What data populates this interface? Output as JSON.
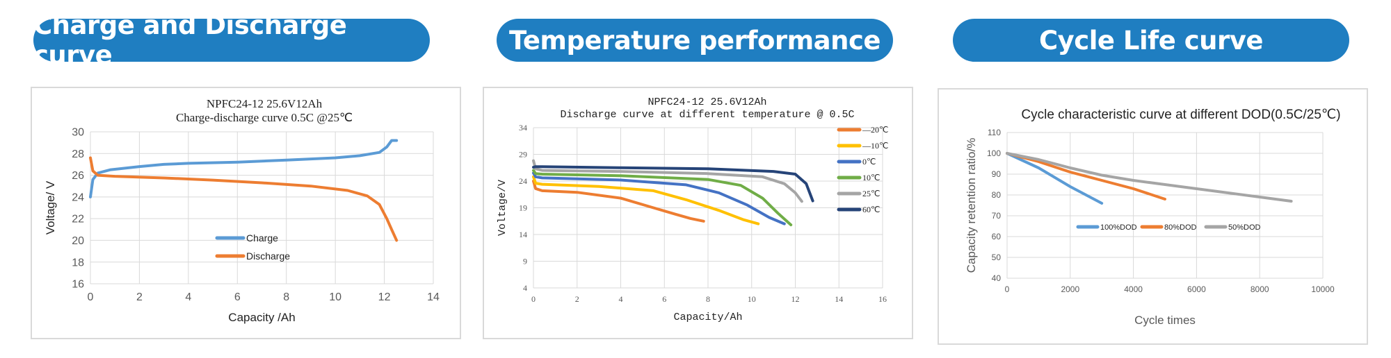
{
  "banners": [
    {
      "title": "Charge and Discharge curve"
    },
    {
      "title": "Temperature performance"
    },
    {
      "title": "Cycle Life curve"
    }
  ],
  "colors": {
    "banner": "#1f7ec1",
    "blue": "#5b9bd5",
    "orange": "#ed7d31",
    "gray": "#a5a5a5",
    "yellow": "#ffc000",
    "darkblue": "#4472c4",
    "green": "#70ad47",
    "navy": "#264478"
  },
  "chart_data": [
    {
      "type": "line",
      "title": "NPFC24-12  25.6V12Ah",
      "subtitle": "Charge-discharge curve   0.5C @25℃",
      "xlabel": "Capacity /Ah",
      "ylabel": "Voltage/ V",
      "xlim": [
        0,
        14
      ],
      "ylim": [
        16,
        30
      ],
      "xticks": [
        0,
        2,
        4,
        6,
        8,
        10,
        12,
        14
      ],
      "yticks": [
        16,
        18,
        20,
        22,
        24,
        26,
        28,
        30
      ],
      "grid": true,
      "legend": "inside-bottom-center",
      "series": [
        {
          "name": "Charge",
          "color": "#5b9bd5",
          "x": [
            0,
            0.1,
            0.3,
            0.8,
            2,
            3,
            4,
            6,
            8,
            10,
            11,
            11.8,
            12.1,
            12.3,
            12.5
          ],
          "y": [
            24.0,
            25.6,
            26.2,
            26.5,
            26.8,
            27.0,
            27.1,
            27.2,
            27.4,
            27.6,
            27.8,
            28.1,
            28.6,
            29.2,
            29.2
          ]
        },
        {
          "name": "Discharge",
          "color": "#ed7d31",
          "x": [
            0,
            0.1,
            0.3,
            1,
            3,
            5,
            7,
            9,
            10.5,
            11.3,
            11.8,
            12.1,
            12.3,
            12.5
          ],
          "y": [
            27.6,
            26.4,
            26.0,
            25.9,
            25.75,
            25.55,
            25.3,
            25.0,
            24.6,
            24.1,
            23.3,
            22.0,
            21.0,
            20.0
          ]
        }
      ]
    },
    {
      "type": "line",
      "title": "NPFC24-12  25.6V12Ah",
      "subtitle": "Discharge curve at different temperature @ 0.5C",
      "xlabel": "Capacity/Ah",
      "ylabel": "Voltage/V",
      "xlim": [
        0,
        16
      ],
      "ylim": [
        4,
        34
      ],
      "xticks": [
        0,
        2,
        4,
        6,
        8,
        10,
        12,
        14,
        16
      ],
      "yticks": [
        4,
        9,
        14,
        19,
        24,
        29,
        34
      ],
      "grid": true,
      "legend": "right",
      "series": [
        {
          "name": "—20℃",
          "color": "#ed7d31",
          "x": [
            0,
            0.1,
            0.4,
            2,
            4,
            5.5,
            6.5,
            7.2,
            7.8
          ],
          "y": [
            24.0,
            22.6,
            22.2,
            21.9,
            20.8,
            19.0,
            17.8,
            17.0,
            16.5
          ]
        },
        {
          "name": "—10℃",
          "color": "#ffc000",
          "x": [
            0,
            0.1,
            0.4,
            3,
            5.5,
            7,
            8.5,
            9.6,
            10.3
          ],
          "y": [
            24.8,
            23.6,
            23.4,
            23.0,
            22.2,
            20.5,
            18.5,
            16.8,
            16.0
          ]
        },
        {
          "name": "0℃",
          "color": "#4472c4",
          "x": [
            0,
            0.1,
            0.4,
            4,
            7,
            8.5,
            9.8,
            10.8,
            11.5
          ],
          "y": [
            25.5,
            24.8,
            24.6,
            24.2,
            23.3,
            21.8,
            19.5,
            17.2,
            16.0
          ]
        },
        {
          "name": "10℃",
          "color": "#70ad47",
          "x": [
            0,
            0.1,
            0.4,
            4,
            8,
            9.5,
            10.5,
            11.2,
            11.8
          ],
          "y": [
            26.0,
            25.4,
            25.3,
            25.0,
            24.3,
            23.2,
            20.8,
            18.0,
            15.8
          ]
        },
        {
          "name": "25℃",
          "color": "#a5a5a5",
          "x": [
            0,
            0.1,
            0.4,
            4,
            8,
            10.5,
            11.5,
            12.0,
            12.3
          ],
          "y": [
            27.8,
            26.3,
            26.0,
            25.8,
            25.4,
            24.8,
            23.5,
            21.8,
            20.2
          ]
        },
        {
          "name": "60℃",
          "color": "#264478",
          "x": [
            0,
            0.1,
            0.4,
            4,
            8,
            11,
            12.0,
            12.5,
            12.8
          ],
          "y": [
            26.6,
            26.7,
            26.7,
            26.5,
            26.3,
            25.8,
            25.3,
            23.5,
            20.3
          ]
        }
      ]
    },
    {
      "type": "line",
      "title": "Cycle characteristic curve at different DOD(0.5C/25℃)",
      "xlabel": "Cycle times",
      "ylabel": "Capacity retention ratio/%",
      "xlim": [
        0,
        10000
      ],
      "ylim": [
        40,
        110
      ],
      "xticks": [
        0,
        2000,
        4000,
        6000,
        8000,
        10000
      ],
      "yticks": [
        40,
        50,
        60,
        70,
        80,
        90,
        100,
        110
      ],
      "grid": true,
      "legend": "inside-center",
      "series": [
        {
          "name": "100%DOD",
          "color": "#5b9bd5",
          "x": [
            0,
            1000,
            2000,
            3000
          ],
          "y": [
            100,
            93,
            84,
            76
          ]
        },
        {
          "name": "80%DOD",
          "color": "#ed7d31",
          "x": [
            0,
            1000,
            2000,
            3000,
            4000,
            5000
          ],
          "y": [
            100,
            96,
            91,
            87,
            83,
            78
          ]
        },
        {
          "name": "50%DOD",
          "color": "#a5a5a5",
          "x": [
            0,
            1000,
            2000,
            3000,
            4000,
            5000,
            6000,
            7000,
            8000,
            9000
          ],
          "y": [
            100,
            97,
            93,
            89.5,
            87,
            85,
            83,
            81,
            79,
            77
          ]
        }
      ]
    }
  ]
}
